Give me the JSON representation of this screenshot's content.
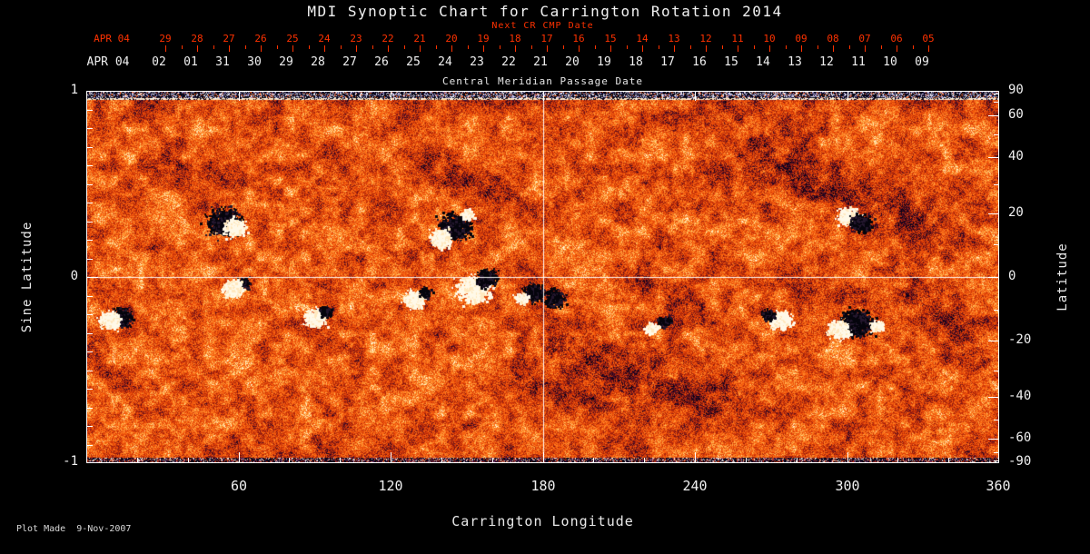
{
  "title": "MDI Synoptic Chart for Carrington Rotation 2014",
  "subtitle": "Next CR CMP Date",
  "top_axis": {
    "red_month_label": "APR 04",
    "red_ticks": [
      "29",
      "28",
      "27",
      "26",
      "25",
      "24",
      "23",
      "22",
      "21",
      "20",
      "19",
      "18",
      "17",
      "16",
      "15",
      "14",
      "13",
      "12",
      "11",
      "10",
      "09",
      "08",
      "07",
      "06",
      "05"
    ],
    "white_month_label": "APR 04",
    "white_ticks": [
      "02",
      "01",
      "31",
      "30",
      "29",
      "28",
      "27",
      "26",
      "25",
      "24",
      "23",
      "22",
      "21",
      "20",
      "19",
      "18",
      "17",
      "16",
      "15",
      "14",
      "13",
      "12",
      "11",
      "10",
      "09"
    ],
    "caption": "Central Meridian Passage Date"
  },
  "left_axis": {
    "label": "Sine Latitude",
    "tick_values": [
      1,
      0,
      -1
    ],
    "tick_labels": [
      "1",
      "0",
      "-1"
    ]
  },
  "right_axis": {
    "label": "Latitude",
    "tick_values": [
      90,
      60,
      40,
      20,
      0,
      -20,
      -40,
      -60,
      -90
    ],
    "tick_labels": [
      "90",
      "60",
      "40",
      "20",
      "0",
      "-20",
      "-40",
      "-60",
      "-90"
    ],
    "minor_tick_values": [
      80,
      70,
      50,
      30,
      10,
      -10,
      -30,
      -50,
      -70,
      -80
    ]
  },
  "bottom_axis": {
    "label": "Carrington Longitude",
    "tick_values": [
      60,
      120,
      180,
      240,
      300,
      360
    ],
    "tick_labels": [
      "60",
      "120",
      "180",
      "240",
      "300",
      "360"
    ],
    "range": [
      0,
      360
    ]
  },
  "footer": "Plot Made  9-Nov-2007",
  "colors": {
    "background": "#000000",
    "axis_red": "#ff3200",
    "axis_white": "#f0f0f0",
    "map_base_orange": "#f8600e",
    "positive_field": "#fff8e6",
    "negative_field": "#05050f"
  },
  "chart_data": {
    "type": "heatmap",
    "title": "MDI Synoptic Chart for Carrington Rotation 2014",
    "xlabel": "Carrington Longitude",
    "ylabel_left": "Sine Latitude",
    "ylabel_right": "Latitude",
    "xlim": [
      0,
      360
    ],
    "ylim_sine": [
      -1,
      1
    ],
    "x_ticks": [
      60,
      120,
      180,
      240,
      300,
      360
    ],
    "legend_position": "none",
    "grid": false,
    "crosshair": {
      "longitude": 180,
      "sine_latitude": 0
    },
    "description": "Full-rotation solar photospheric magnetogram; orange-red salt-and-pepper background with white (positive) and black (negative) bipolar active regions, dark polarity-inversion lanes, and noisy dark/white data bands at both poles.",
    "active_regions": [
      {
        "lon": 53.7,
        "sine_lat": 0.3,
        "polarity": "neg",
        "size": 3
      },
      {
        "lon": 58.4,
        "sine_lat": 0.27,
        "polarity": "pos",
        "size": 2
      },
      {
        "lon": 13.6,
        "sine_lat": -0.21,
        "polarity": "neg",
        "size": 2
      },
      {
        "lon": 9.0,
        "sine_lat": -0.23,
        "polarity": "pos",
        "size": 2
      },
      {
        "lon": 61.6,
        "sine_lat": -0.03,
        "polarity": "neg",
        "size": 1
      },
      {
        "lon": 57.3,
        "sine_lat": -0.06,
        "polarity": "pos",
        "size": 2
      },
      {
        "lon": 89.6,
        "sine_lat": -0.22,
        "polarity": "pos",
        "size": 2
      },
      {
        "lon": 93.9,
        "sine_lat": -0.18,
        "polarity": "neg",
        "size": 1
      },
      {
        "lon": 145.1,
        "sine_lat": 0.27,
        "polarity": "neg",
        "size": 3
      },
      {
        "lon": 139.7,
        "sine_lat": 0.21,
        "polarity": "pos",
        "size": 2
      },
      {
        "lon": 150.4,
        "sine_lat": 0.34,
        "polarity": "pos",
        "size": 1
      },
      {
        "lon": 152.2,
        "sine_lat": -0.06,
        "polarity": "pos",
        "size": 3
      },
      {
        "lon": 157.6,
        "sine_lat": 0.0,
        "polarity": "neg",
        "size": 2
      },
      {
        "lon": 176.2,
        "sine_lat": -0.08,
        "polarity": "neg",
        "size": 2
      },
      {
        "lon": 171.2,
        "sine_lat": -0.11,
        "polarity": "pos",
        "size": 1
      },
      {
        "lon": 129.0,
        "sine_lat": -0.12,
        "polarity": "pos",
        "size": 2
      },
      {
        "lon": 133.3,
        "sine_lat": -0.08,
        "polarity": "neg",
        "size": 1
      },
      {
        "lon": 184.5,
        "sine_lat": -0.11,
        "polarity": "neg",
        "size": 2
      },
      {
        "lon": 227.5,
        "sine_lat": -0.24,
        "polarity": "neg",
        "size": 1
      },
      {
        "lon": 222.8,
        "sine_lat": -0.27,
        "polarity": "pos",
        "size": 1
      },
      {
        "lon": 274.0,
        "sine_lat": -0.23,
        "polarity": "pos",
        "size": 2
      },
      {
        "lon": 268.7,
        "sine_lat": -0.2,
        "polarity": "neg",
        "size": 1
      },
      {
        "lon": 300.2,
        "sine_lat": 0.33,
        "polarity": "pos",
        "size": 2
      },
      {
        "lon": 305.2,
        "sine_lat": 0.29,
        "polarity": "neg",
        "size": 2
      },
      {
        "lon": 303.7,
        "sine_lat": -0.24,
        "polarity": "neg",
        "size": 3
      },
      {
        "lon": 296.6,
        "sine_lat": -0.28,
        "polarity": "pos",
        "size": 2
      },
      {
        "lon": 311.6,
        "sine_lat": -0.26,
        "polarity": "pos",
        "size": 1
      }
    ],
    "dark_lanes": [
      {
        "lon1": 188,
        "slat1": -0.37,
        "lon2": 249,
        "slat2": -0.66,
        "w": 25,
        "st": 0.35
      },
      {
        "lon1": 263,
        "slat1": 0.61,
        "lon2": 328,
        "slat2": 0.32,
        "w": 30,
        "st": 0.3
      },
      {
        "lon1": 217,
        "slat1": 0.02,
        "lon2": 242,
        "slat2": -0.2,
        "w": 18,
        "st": 0.25
      },
      {
        "lon1": 134,
        "slat1": 0.59,
        "lon2": 167,
        "slat2": 0.39,
        "w": 20,
        "st": 0.28
      },
      {
        "lon1": 324,
        "slat1": -0.02,
        "lon2": 351,
        "slat2": -0.42,
        "w": 22,
        "st": 0.3
      },
      {
        "lon1": 30,
        "slat1": 0.66,
        "lon2": 59,
        "slat2": 0.49,
        "w": 16,
        "st": 0.22
      },
      {
        "lon1": 167,
        "slat1": -0.56,
        "lon2": 217,
        "slat2": -0.73,
        "w": 18,
        "st": 0.25
      },
      {
        "lon1": 277,
        "slat1": 0.02,
        "lon2": 310,
        "slat2": -0.12,
        "w": 20,
        "st": 0.22
      }
    ]
  }
}
